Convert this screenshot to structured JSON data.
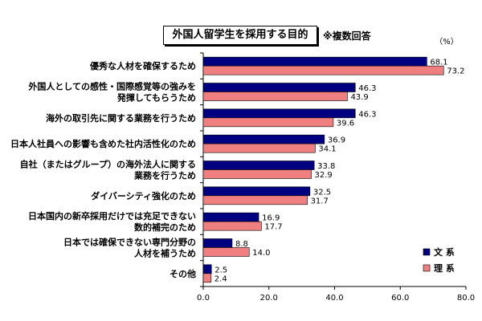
{
  "header": {
    "title": "外国人留学生を採用する目的",
    "note": "※複数回答"
  },
  "chart_data": {
    "type": "bar",
    "orientation": "horizontal",
    "unit_label": "（%）",
    "categories": [
      [
        "優秀な人材を確保するため"
      ],
      [
        "外国人としての感性・国際感覚等の強みを",
        "発揮してもらうため"
      ],
      [
        "海外の取引先に関する業務を行うため"
      ],
      [
        "日本人社員への影響も含めた社内活性化のため"
      ],
      [
        "自社（またはグループ）の海外法人に関する",
        "業務を行うため"
      ],
      [
        "ダイバーシティ強化のため"
      ],
      [
        "日本国内の新卒採用だけでは充足できない",
        "数的補完のため"
      ],
      [
        "日本では確保できない専門分野の",
        "人材を補うため"
      ],
      [
        "その他"
      ]
    ],
    "series": [
      {
        "name": "文 系",
        "color": "#000080",
        "values": [
          68.1,
          46.3,
          46.3,
          36.9,
          33.8,
          32.5,
          16.9,
          8.8,
          2.5
        ]
      },
      {
        "name": "理 系",
        "color": "#f08080",
        "values": [
          73.2,
          43.9,
          39.6,
          34.1,
          32.9,
          31.7,
          17.7,
          14.0,
          2.4
        ]
      }
    ],
    "xlim": [
      0,
      80
    ],
    "xticks": [
      "0.0",
      "20.0",
      "40.0",
      "60.0",
      "80.0"
    ],
    "legend_position": "bottom-right"
  }
}
